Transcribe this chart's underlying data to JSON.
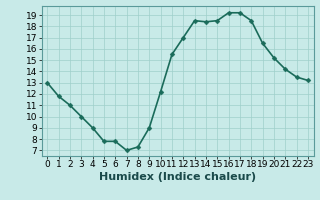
{
  "x": [
    0,
    1,
    2,
    3,
    4,
    5,
    6,
    7,
    8,
    9,
    10,
    11,
    12,
    13,
    14,
    15,
    16,
    17,
    18,
    19,
    20,
    21,
    22,
    23
  ],
  "y": [
    13.0,
    11.8,
    11.0,
    10.0,
    9.0,
    7.8,
    7.8,
    7.0,
    7.3,
    9.0,
    12.2,
    15.5,
    17.0,
    18.5,
    18.4,
    18.5,
    19.2,
    19.2,
    18.5,
    16.5,
    15.2,
    14.2,
    13.5,
    13.2
  ],
  "line_color": "#1a6b5a",
  "marker_color": "#1a6b5a",
  "bg_color": "#c8eae8",
  "grid_color": "#9fcfcb",
  "xlabel": "Humidex (Indice chaleur)",
  "ylim": [
    6.5,
    19.8
  ],
  "xlim": [
    -0.5,
    23.5
  ],
  "yticks": [
    7,
    8,
    9,
    10,
    11,
    12,
    13,
    14,
    15,
    16,
    17,
    18,
    19
  ],
  "xticks": [
    0,
    1,
    2,
    3,
    4,
    5,
    6,
    7,
    8,
    9,
    10,
    11,
    12,
    13,
    14,
    15,
    16,
    17,
    18,
    19,
    20,
    21,
    22,
    23
  ],
  "xtick_labels": [
    "0",
    "1",
    "2",
    "3",
    "4",
    "5",
    "6",
    "7",
    "8",
    "9",
    "10",
    "11",
    "12",
    "13",
    "14",
    "15",
    "16",
    "17",
    "18",
    "19",
    "20",
    "21",
    "22",
    "23"
  ],
  "tick_fontsize": 6.5,
  "xlabel_fontsize": 8,
  "marker_size": 2.5,
  "line_width": 1.2
}
